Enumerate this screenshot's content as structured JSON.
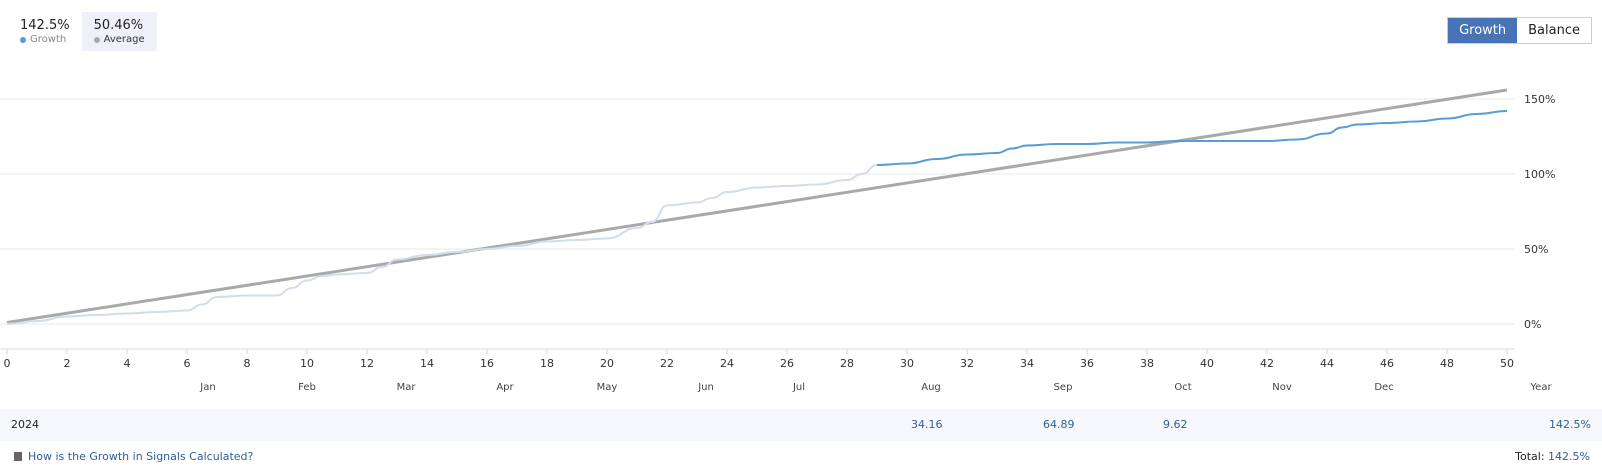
{
  "legend": [
    {
      "value": "142.5%",
      "label": "Growth",
      "color": "#5b9bd5"
    },
    {
      "value": "50.46%",
      "label": "Average",
      "color": "#a9a9a9"
    }
  ],
  "toggle": {
    "growth_label": "Growth",
    "balance_label": "Balance"
  },
  "chart_data": {
    "type": "line",
    "x_ticks": [
      "0",
      "2",
      "4",
      "6",
      "8",
      "10",
      "12",
      "14",
      "16",
      "18",
      "20",
      "22",
      "24",
      "26",
      "28",
      "30",
      "32",
      "34",
      "36",
      "38",
      "40",
      "42",
      "44",
      "46",
      "48",
      "50"
    ],
    "y_ticks": [
      "0%",
      "50%",
      "100%",
      "150%"
    ],
    "ylim": [
      -15,
      168
    ],
    "xlim": [
      0,
      50
    ],
    "months": [
      {
        "label": "Jan",
        "x": 6.7
      },
      {
        "label": "Feb",
        "x": 10
      },
      {
        "label": "Mar",
        "x": 13.3
      },
      {
        "label": "Apr",
        "x": 16.6
      },
      {
        "label": "May",
        "x": 20
      },
      {
        "label": "Jun",
        "x": 23.3
      },
      {
        "label": "Jul",
        "x": 26.4
      },
      {
        "label": "Aug",
        "x": 30.8
      },
      {
        "label": "Sep",
        "x": 35.2
      },
      {
        "label": "Oct",
        "x": 39.2
      },
      {
        "label": "Nov",
        "x": 42.5
      },
      {
        "label": "Dec",
        "x": 45.9
      }
    ],
    "year_label": "Year",
    "series": [
      {
        "name": "Growth",
        "color_faded": "#d3dcec",
        "color": "#5b9bd5",
        "highlight_from_x": 29,
        "x": [
          0,
          1,
          2,
          3,
          4,
          5,
          6,
          6.5,
          7,
          8,
          9,
          9.5,
          10,
          10.5,
          11,
          12,
          12.5,
          13,
          14,
          15,
          16,
          17,
          18,
          19,
          20,
          21,
          21.5,
          22,
          23,
          23.5,
          24,
          25,
          26,
          27,
          28,
          28.5,
          29,
          30,
          31,
          32,
          33,
          33.5,
          34,
          35,
          36,
          37,
          38,
          39,
          40,
          41,
          42,
          43,
          44,
          44.5,
          45,
          46,
          47,
          48,
          49,
          50
        ],
        "y": [
          0,
          2,
          5,
          6,
          7,
          8,
          9,
          13,
          18,
          19,
          19,
          24,
          29,
          32,
          33,
          34,
          38,
          43,
          46,
          48,
          50,
          52,
          55,
          56,
          57,
          64,
          68,
          79,
          81,
          84,
          88,
          91,
          92,
          93,
          96,
          100,
          106,
          107,
          110,
          113,
          114,
          117,
          119,
          120,
          120,
          121,
          121,
          122,
          122,
          122,
          122,
          123,
          127,
          131,
          133,
          134,
          135,
          137,
          140,
          142
        ]
      },
      {
        "name": "Average",
        "color": "#a9a9a9",
        "x": [
          0,
          50
        ],
        "y": [
          1,
          156
        ]
      }
    ]
  },
  "summary": {
    "year": "2024",
    "values": [
      {
        "text": "34.16",
        "x": 30.8
      },
      {
        "text": "64.89",
        "x": 35.2
      },
      {
        "text": "9.62",
        "x": 39.2
      }
    ],
    "year_total": "142.5%"
  },
  "footer": {
    "help_link": "How is the Growth in Signals Calculated?",
    "total_label": "Total:",
    "total_value": "142.5%"
  }
}
